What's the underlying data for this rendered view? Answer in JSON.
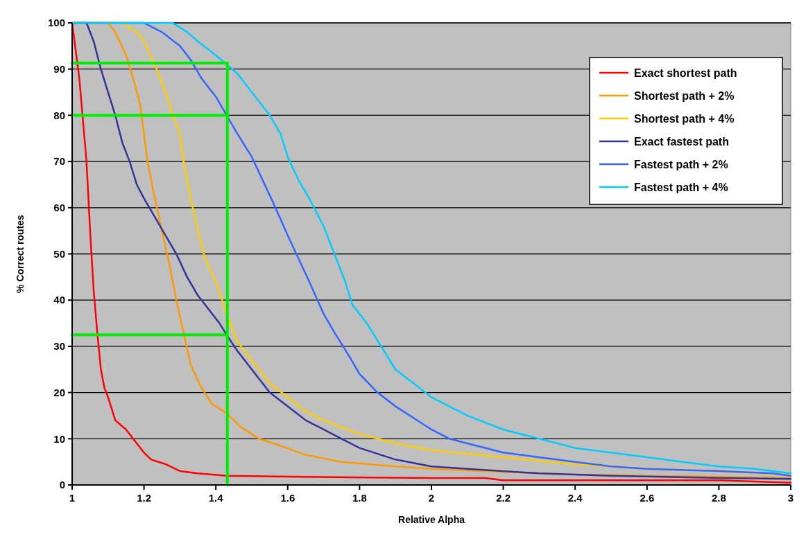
{
  "chart_data": {
    "type": "line",
    "xlabel": "Relative Alpha",
    "ylabel": "% Correct routes",
    "xlim": [
      1,
      3
    ],
    "ylim": [
      0,
      100
    ],
    "xticks": [
      1,
      1.2,
      1.4,
      1.6,
      1.8,
      2,
      2.2,
      2.4,
      2.6,
      2.8,
      3
    ],
    "yticks": [
      0,
      10,
      20,
      30,
      40,
      50,
      60,
      70,
      80,
      90,
      100
    ],
    "grid": "y",
    "legend": "top right",
    "line_style": "solid",
    "series": [
      {
        "name": "Exact shortest path",
        "color": "#ff0000",
        "x": [
          1,
          1.02,
          1.04,
          1.05,
          1.06,
          1.07,
          1.08,
          1.09,
          1.1,
          1.12,
          1.15,
          1.18,
          1.2,
          1.22,
          1.26,
          1.3,
          1.35,
          1.43,
          1.6,
          2,
          2.15,
          2.2,
          2.6,
          2.8,
          3
        ],
        "values": [
          100,
          88,
          70,
          55,
          42,
          33,
          25,
          21,
          19,
          14,
          12,
          9,
          7,
          5.5,
          4.5,
          3,
          2.5,
          2,
          1.8,
          1.5,
          1.5,
          1,
          1,
          1,
          0.5
        ]
      },
      {
        "name": "Shortest path + 2%",
        "color": "#ff9900",
        "x": [
          1,
          1.1,
          1.12,
          1.15,
          1.17,
          1.19,
          1.2,
          1.21,
          1.23,
          1.25,
          1.27,
          1.29,
          1.31,
          1.33,
          1.36,
          1.39,
          1.43,
          1.47,
          1.52,
          1.58,
          1.65,
          1.75,
          1.9,
          2,
          2.2,
          2.4,
          2.6,
          2.8,
          3
        ],
        "values": [
          100,
          100,
          98,
          93,
          88,
          82,
          76,
          70,
          62,
          55,
          48,
          40,
          33,
          26,
          21,
          17.5,
          15.5,
          12.5,
          10,
          8.5,
          6.5,
          5,
          4,
          3.5,
          2.8,
          2.3,
          2,
          1.8,
          1.5
        ]
      },
      {
        "name": "Shortest path + 4%",
        "color": "#ffcc00",
        "x": [
          1,
          1.14,
          1.18,
          1.2,
          1.23,
          1.26,
          1.28,
          1.3,
          1.31,
          1.33,
          1.35,
          1.37,
          1.4,
          1.43,
          1.46,
          1.5,
          1.55,
          1.6,
          1.65,
          1.7,
          1.75,
          1.8,
          1.85,
          1.9,
          2,
          2.2,
          2.4,
          2.6,
          2.8,
          3
        ],
        "values": [
          100,
          100,
          98,
          96,
          91,
          85,
          80,
          76,
          70,
          62,
          55,
          49,
          44,
          37,
          31,
          27,
          22,
          19,
          16,
          14,
          12.5,
          11,
          10,
          9,
          7.5,
          6,
          4.5,
          3.5,
          3,
          2.2
        ]
      },
      {
        "name": "Exact fastest path",
        "color": "#333399",
        "x": [
          1,
          1.04,
          1.06,
          1.08,
          1.1,
          1.12,
          1.14,
          1.16,
          1.18,
          1.2,
          1.23,
          1.26,
          1.29,
          1.32,
          1.35,
          1.38,
          1.41,
          1.43,
          1.46,
          1.5,
          1.55,
          1.6,
          1.65,
          1.7,
          1.75,
          1.8,
          1.9,
          2,
          2.1,
          2.3,
          2.5,
          2.8,
          3
        ],
        "values": [
          100,
          100,
          96,
          90,
          85,
          80,
          74,
          70,
          65,
          62,
          58,
          54,
          50,
          45,
          41,
          38,
          35,
          32.5,
          29,
          25,
          20,
          17,
          14,
          12,
          10,
          8,
          5.5,
          4,
          3.5,
          2.5,
          2,
          1.5,
          1.3
        ]
      },
      {
        "name": "Fastest path + 2%",
        "color": "#3366ff",
        "x": [
          1,
          1.2,
          1.25,
          1.3,
          1.33,
          1.36,
          1.4,
          1.43,
          1.46,
          1.5,
          1.53,
          1.56,
          1.6,
          1.63,
          1.66,
          1.7,
          1.73,
          1.77,
          1.8,
          1.85,
          1.9,
          1.95,
          2,
          2.05,
          2.1,
          2.2,
          2.3,
          2.4,
          2.5,
          2.6,
          2.8,
          2.95,
          3
        ],
        "values": [
          100,
          100,
          98,
          95,
          92,
          88,
          84,
          80,
          76,
          71,
          66,
          61,
          54,
          49,
          44,
          37,
          33,
          28,
          24,
          20,
          17,
          14.5,
          12,
          10,
          9,
          7,
          6,
          5,
          4,
          3.5,
          3,
          2.5,
          2
        ]
      },
      {
        "name": "Fastest path + 4%",
        "color": "#00ccff",
        "x": [
          1,
          1.28,
          1.32,
          1.35,
          1.4,
          1.43,
          1.46,
          1.5,
          1.55,
          1.58,
          1.6,
          1.63,
          1.66,
          1.7,
          1.73,
          1.76,
          1.78,
          1.82,
          1.86,
          1.9,
          1.95,
          2,
          2.05,
          2.1,
          2.2,
          2.3,
          2.4,
          2.5,
          2.6,
          2.7,
          2.8,
          2.9,
          3
        ],
        "values": [
          100,
          100,
          98,
          96,
          93,
          91,
          89,
          85,
          80,
          76,
          71,
          66,
          62,
          56,
          50,
          44,
          39,
          35,
          30,
          25,
          22,
          19,
          17,
          15,
          12,
          10,
          8,
          7,
          6,
          5,
          4,
          3.5,
          2.5
        ]
      },
      {
        "color": "#00ee00",
        "x": [
          1,
          1.432
        ],
        "values": [
          91.3,
          91.3
        ]
      },
      {
        "color": "#00ee00",
        "x": [
          1,
          1.432
        ],
        "values": [
          80,
          80
        ]
      },
      {
        "color": "#00ee00",
        "x": [
          1,
          1.432
        ],
        "values": [
          32.5,
          32.5
        ]
      },
      {
        "color": "#00ee00",
        "x": [
          1.432,
          1.432
        ],
        "values": [
          91.3,
          0
        ]
      }
    ]
  }
}
